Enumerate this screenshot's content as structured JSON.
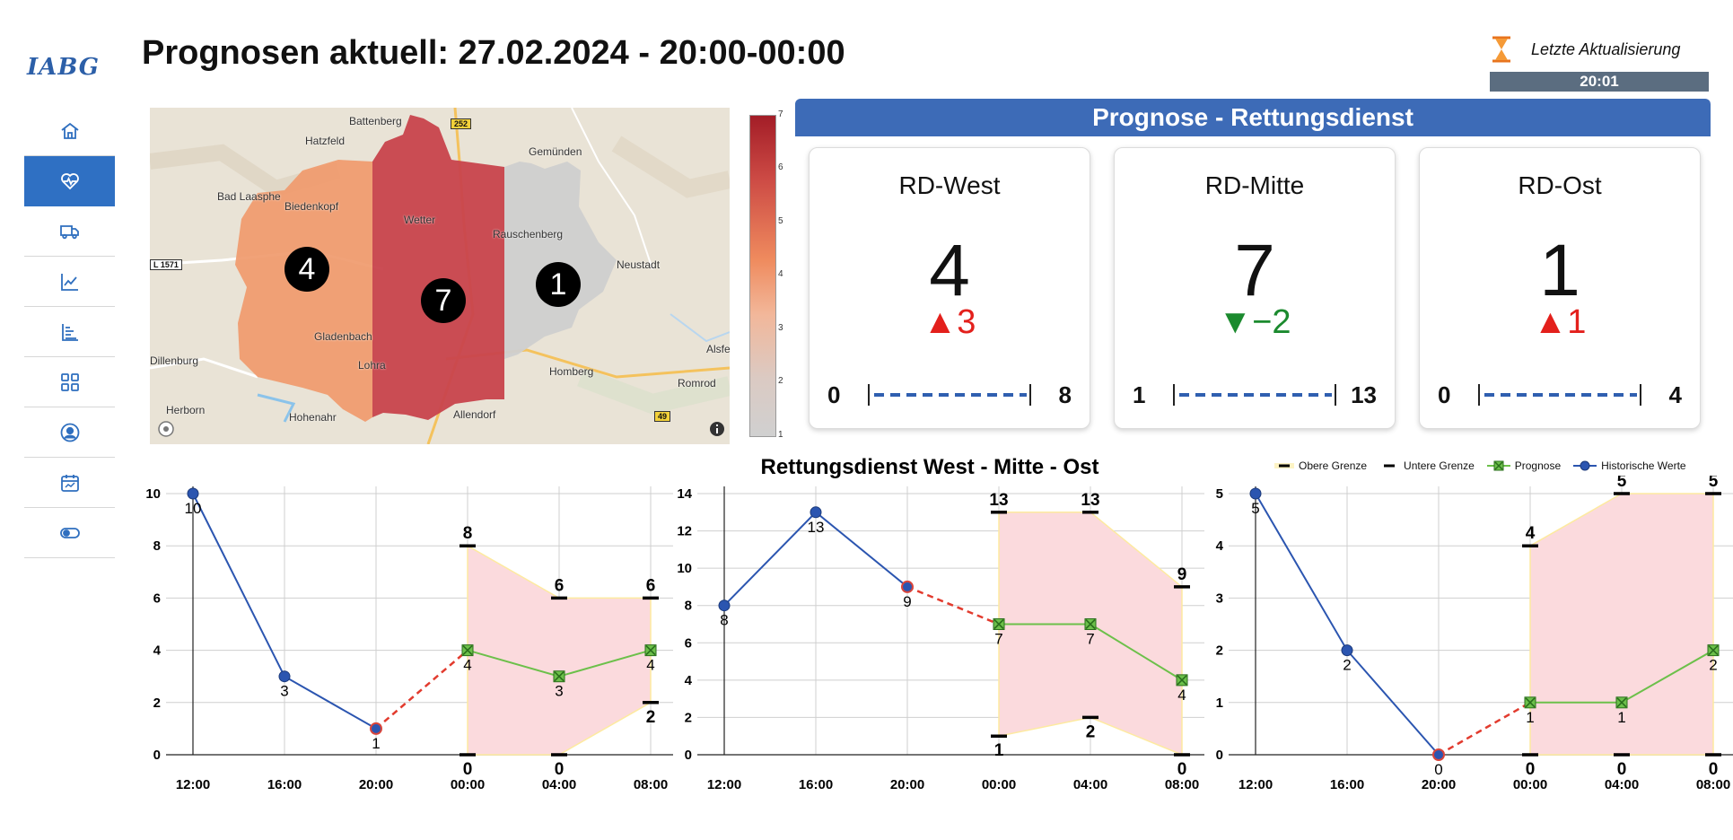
{
  "logo": "IABG",
  "header": {
    "title": "Prognosen aktuell: 27.02.2024 - 20:00-00:00",
    "update_label": "Letzte Aktualisierung",
    "update_time": "20:01"
  },
  "sidebar": {
    "items": [
      {
        "icon": "home-icon",
        "active": false
      },
      {
        "icon": "heart-pulse-icon",
        "active": true
      },
      {
        "icon": "truck-icon",
        "active": false
      },
      {
        "icon": "line-chart-icon",
        "active": false
      },
      {
        "icon": "bar-list-icon",
        "active": false
      },
      {
        "icon": "grid-icon",
        "active": false
      },
      {
        "icon": "user-circle-icon",
        "active": false
      },
      {
        "icon": "calendar-icon",
        "active": false
      },
      {
        "icon": "toggle-icon",
        "active": false
      }
    ]
  },
  "map": {
    "places": [
      "Battenberg",
      "Hatzfeld",
      "Gemünden",
      "Bad Laasphe",
      "Biedenkopf",
      "Wetter",
      "Rauschenberg",
      "Neustadt",
      "Gladenbach",
      "Lohra",
      "Dillenburg",
      "Homberg",
      "Alsfe",
      "Herborn",
      "Hohenahr",
      "Allendorf",
      "Romrod"
    ],
    "road_labels": [
      "252",
      "L 1571",
      "49"
    ],
    "regions": [
      {
        "name": "RD-West",
        "value": 4,
        "color": "#f09a6c"
      },
      {
        "name": "RD-Mitte",
        "value": 7,
        "color": "#c8434c"
      },
      {
        "name": "RD-Ost",
        "value": 1,
        "color": "#cfcfcf"
      }
    ],
    "colorbar_ticks": [
      "7",
      "6",
      "5",
      "4",
      "3",
      "2",
      "1"
    ]
  },
  "panel": {
    "banner": "Prognose - Rettungsdienst",
    "cards": [
      {
        "name": "RD-West",
        "value": "4",
        "delta": "▲3",
        "direction": "up",
        "min": "0",
        "max": "8"
      },
      {
        "name": "RD-Mitte",
        "value": "7",
        "delta": "▼−2",
        "direction": "down",
        "min": "1",
        "max": "13"
      },
      {
        "name": "RD-Ost",
        "value": "1",
        "delta": "▲1",
        "direction": "up",
        "min": "0",
        "max": "4"
      }
    ]
  },
  "charts": {
    "title": "Rettungsdienst West - Mitte - Ost",
    "legend": {
      "upper": "Obere Grenze",
      "lower": "Untere Grenze",
      "forecast": "Prognose",
      "history": "Historische Werte"
    },
    "colors": {
      "history": "#2b55b0",
      "forecast": "#6cc04a",
      "bridge": "#e23b2e",
      "band": "#fbdadd"
    }
  },
  "chart_data": [
    {
      "type": "line",
      "title": "",
      "categories": [
        "12:00",
        "16:00",
        "20:00",
        "00:00",
        "04:00",
        "08:00"
      ],
      "ylim": [
        0,
        10
      ],
      "yticks": [
        0,
        2,
        4,
        6,
        8,
        10
      ],
      "history": [
        10,
        3,
        1,
        null,
        null,
        null
      ],
      "forecast": [
        null,
        null,
        null,
        4,
        3,
        4
      ],
      "upper": [
        null,
        null,
        null,
        8,
        6,
        6
      ],
      "lower": [
        null,
        null,
        null,
        0,
        0,
        2
      ]
    },
    {
      "type": "line",
      "title": "Rettungsdienst West - Mitte - Ost",
      "categories": [
        "12:00",
        "16:00",
        "20:00",
        "00:00",
        "04:00",
        "08:00"
      ],
      "ylim": [
        0,
        14
      ],
      "yticks": [
        0,
        2,
        4,
        6,
        8,
        10,
        12,
        14
      ],
      "history": [
        8,
        13,
        9,
        null,
        null,
        null
      ],
      "forecast": [
        null,
        null,
        null,
        7,
        7,
        4
      ],
      "upper": [
        null,
        null,
        null,
        13,
        13,
        9
      ],
      "lower": [
        null,
        null,
        null,
        1,
        2,
        0
      ]
    },
    {
      "type": "line",
      "title": "",
      "categories": [
        "12:00",
        "16:00",
        "20:00",
        "00:00",
        "04:00",
        "08:00"
      ],
      "ylim": [
        0,
        5
      ],
      "yticks": [
        0,
        1,
        2,
        3,
        4,
        5
      ],
      "history": [
        5,
        2,
        0,
        null,
        null,
        null
      ],
      "forecast": [
        null,
        null,
        null,
        1,
        1,
        2
      ],
      "upper": [
        null,
        null,
        null,
        4,
        5,
        5
      ],
      "lower": [
        null,
        null,
        null,
        0,
        0,
        0
      ]
    }
  ]
}
